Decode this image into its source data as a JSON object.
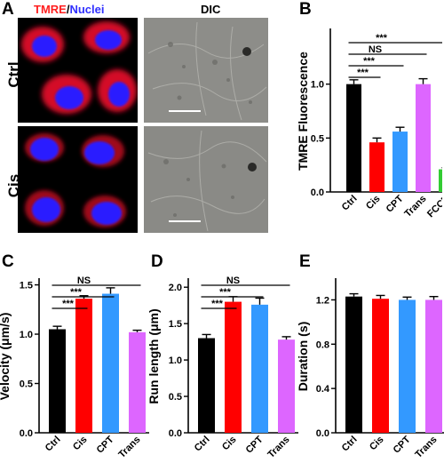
{
  "panels": {
    "A": {
      "letter": "A",
      "header_tmre": "TMRE",
      "header_sep": "/",
      "header_nuclei": "Nuclei",
      "header_dic": "DIC",
      "rows": [
        "Ctrl",
        "Cis"
      ],
      "colors": {
        "tmre": "#ff2020",
        "nuclei": "#3030ff"
      }
    },
    "B": {
      "letter": "B"
    },
    "C": {
      "letter": "C"
    },
    "D": {
      "letter": "D"
    },
    "E": {
      "letter": "E"
    }
  },
  "chart_data": [
    {
      "panel": "B",
      "type": "bar",
      "categories": [
        "Ctrl",
        "Cis",
        "CPT",
        "Trans",
        "FCCP"
      ],
      "values": [
        1.0,
        0.46,
        0.56,
        1.0,
        0.21
      ],
      "errors": [
        0.04,
        0.04,
        0.04,
        0.05,
        0.015
      ],
      "colors": [
        "#000000",
        "#ff0000",
        "#3399ff",
        "#dd66ff",
        "#33cc33"
      ],
      "ylabel": "TMRE Fluorescence",
      "ylim": [
        0,
        1.5
      ],
      "yticks": [
        "0.0",
        "0.5",
        "1.0"
      ],
      "ytick_values": [
        0,
        0.5,
        1.0
      ],
      "significance": [
        {
          "from": 0,
          "to": 1,
          "label": "***"
        },
        {
          "from": 0,
          "to": 2,
          "label": "***"
        },
        {
          "from": 0,
          "to": 3,
          "label": "NS"
        },
        {
          "from": 0,
          "to": 4,
          "label": "***"
        }
      ]
    },
    {
      "panel": "C",
      "type": "bar",
      "categories": [
        "Ctrl",
        "Cis",
        "CPT",
        "Trans"
      ],
      "values": [
        1.05,
        1.36,
        1.41,
        1.02
      ],
      "errors": [
        0.03,
        0.03,
        0.06,
        0.02
      ],
      "colors": [
        "#000000",
        "#ff0000",
        "#3399ff",
        "#dd66ff"
      ],
      "ylabel": "Velocity (μm/s)",
      "ylim": [
        0,
        1.55
      ],
      "yticks": [
        "0.0",
        "0.5",
        "1.0",
        "1.5"
      ],
      "ytick_values": [
        0,
        0.5,
        1.0,
        1.5
      ],
      "significance": [
        {
          "from": 0,
          "to": 1,
          "label": "***"
        },
        {
          "from": 0,
          "to": 2,
          "label": "***"
        },
        {
          "from": 0,
          "to": 3,
          "label": "NS"
        }
      ]
    },
    {
      "panel": "D",
      "type": "bar",
      "categories": [
        "Ctrl",
        "Cis",
        "CPT",
        "Trans"
      ],
      "values": [
        1.3,
        1.8,
        1.76,
        1.28
      ],
      "errors": [
        0.05,
        0.07,
        0.09,
        0.04
      ],
      "colors": [
        "#000000",
        "#ff0000",
        "#3399ff",
        "#dd66ff"
      ],
      "ylabel": "Run length (μm)",
      "ylim": [
        0,
        2.1
      ],
      "yticks": [
        "0.0",
        "0.5",
        "1.0",
        "1.5",
        "2.0"
      ],
      "ytick_values": [
        0,
        0.5,
        1.0,
        1.5,
        2.0
      ],
      "significance": [
        {
          "from": 0,
          "to": 1,
          "label": "***"
        },
        {
          "from": 0,
          "to": 2,
          "label": "***"
        },
        {
          "from": 0,
          "to": 3,
          "label": "NS"
        }
      ]
    },
    {
      "panel": "E",
      "type": "bar",
      "categories": [
        "Ctrl",
        "Cis",
        "CPT",
        "Trans"
      ],
      "values": [
        1.23,
        1.21,
        1.2,
        1.2
      ],
      "errors": [
        0.025,
        0.03,
        0.025,
        0.03
      ],
      "colors": [
        "#000000",
        "#ff0000",
        "#3399ff",
        "#dd66ff"
      ],
      "ylabel": "Duration (s)",
      "ylim": [
        0,
        1.38
      ],
      "yticks": [
        "0.0",
        "0.4",
        "0.8",
        "1.2"
      ],
      "ytick_values": [
        0,
        0.4,
        0.8,
        1.2
      ],
      "significance": []
    }
  ]
}
